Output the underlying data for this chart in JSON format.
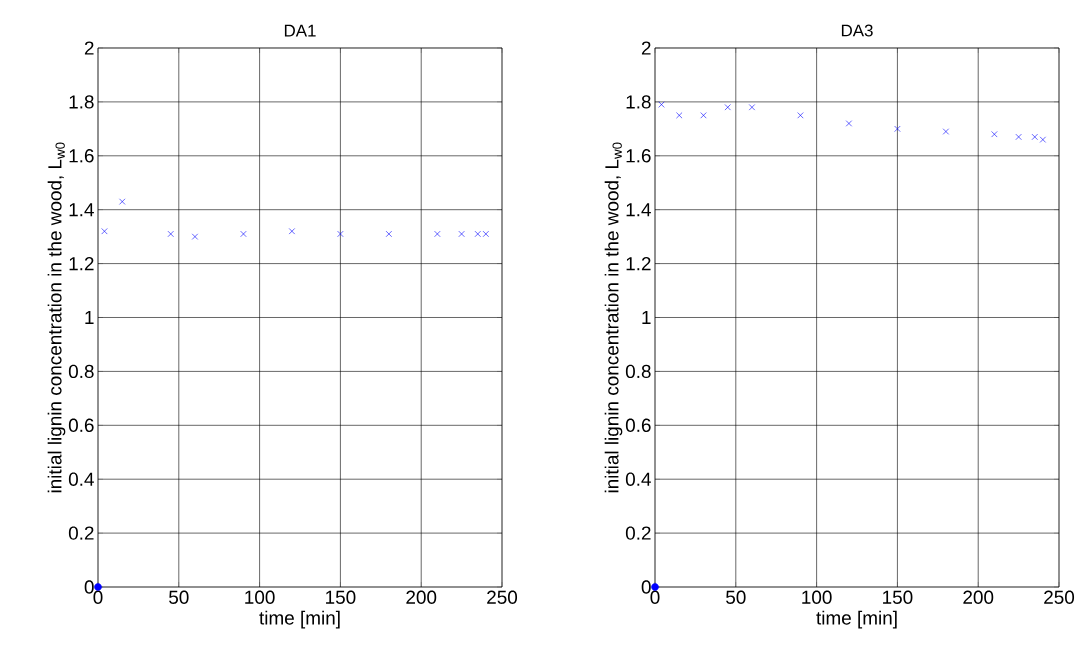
{
  "chart_data": [
    {
      "type": "scatter",
      "title": "DA1",
      "xlabel": "time [min]",
      "ylabel": "initial lignin concentration in the wood, L$_{w0}$",
      "xlim": [
        0,
        250
      ],
      "ylim": [
        0,
        2
      ],
      "xticks": [
        0,
        50,
        100,
        150,
        200,
        250
      ],
      "yticks": [
        0,
        0.2,
        0.4,
        0.6,
        0.8,
        1,
        1.2,
        1.4,
        1.6,
        1.8,
        2
      ],
      "grid": true,
      "series": [
        {
          "color": "#0000ff",
          "marker": "cross",
          "x": [
            4,
            15,
            45,
            60,
            90,
            120,
            150,
            180,
            210,
            225,
            235,
            240
          ],
          "values": [
            1.32,
            1.43,
            1.31,
            1.3,
            1.31,
            1.32,
            1.31,
            1.31,
            1.31,
            1.31,
            1.31,
            1.31
          ]
        },
        {
          "color": "#0000ff",
          "marker": "circle",
          "x": [
            0
          ],
          "values": [
            0
          ]
        }
      ]
    },
    {
      "type": "scatter",
      "title": "DA3",
      "xlabel": "time [min]",
      "ylabel": "initial lignin concentration in the wood, L$_{w0}$",
      "xlim": [
        0,
        250
      ],
      "ylim": [
        0,
        2
      ],
      "xticks": [
        0,
        50,
        100,
        150,
        200,
        250
      ],
      "yticks": [
        0,
        0.2,
        0.4,
        0.6,
        0.8,
        1,
        1.2,
        1.4,
        1.6,
        1.8,
        2
      ],
      "grid": true,
      "series": [
        {
          "color": "#0000ff",
          "marker": "cross",
          "x": [
            4,
            15,
            30,
            45,
            60,
            90,
            120,
            150,
            180,
            210,
            225,
            235,
            240
          ],
          "values": [
            1.79,
            1.75,
            1.75,
            1.78,
            1.78,
            1.75,
            1.72,
            1.7,
            1.69,
            1.68,
            1.67,
            1.67,
            1.66
          ]
        },
        {
          "color": "#0000ff",
          "marker": "circle",
          "x": [
            0
          ],
          "values": [
            0
          ]
        }
      ]
    }
  ]
}
